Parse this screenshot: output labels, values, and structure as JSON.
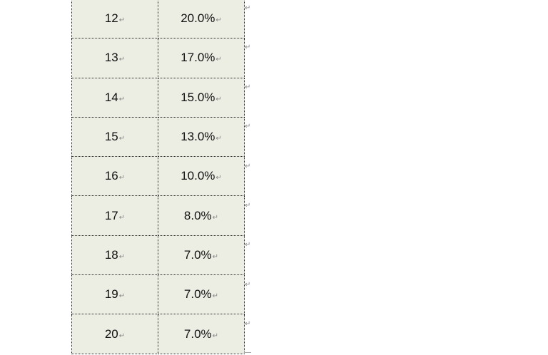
{
  "table": {
    "rows": [
      {
        "number": "12",
        "percent": "20.0%"
      },
      {
        "number": "13",
        "percent": "17.0%"
      },
      {
        "number": "14",
        "percent": "15.0%"
      },
      {
        "number": "15",
        "percent": "13.0%"
      },
      {
        "number": "16",
        "percent": "10.0%"
      },
      {
        "number": "17",
        "percent": "8.0%"
      },
      {
        "number": "18",
        "percent": "7.0%"
      },
      {
        "number": "19",
        "percent": "7.0%"
      },
      {
        "number": "20",
        "percent": "7.0%"
      }
    ],
    "paragraph_mark": "↵"
  }
}
